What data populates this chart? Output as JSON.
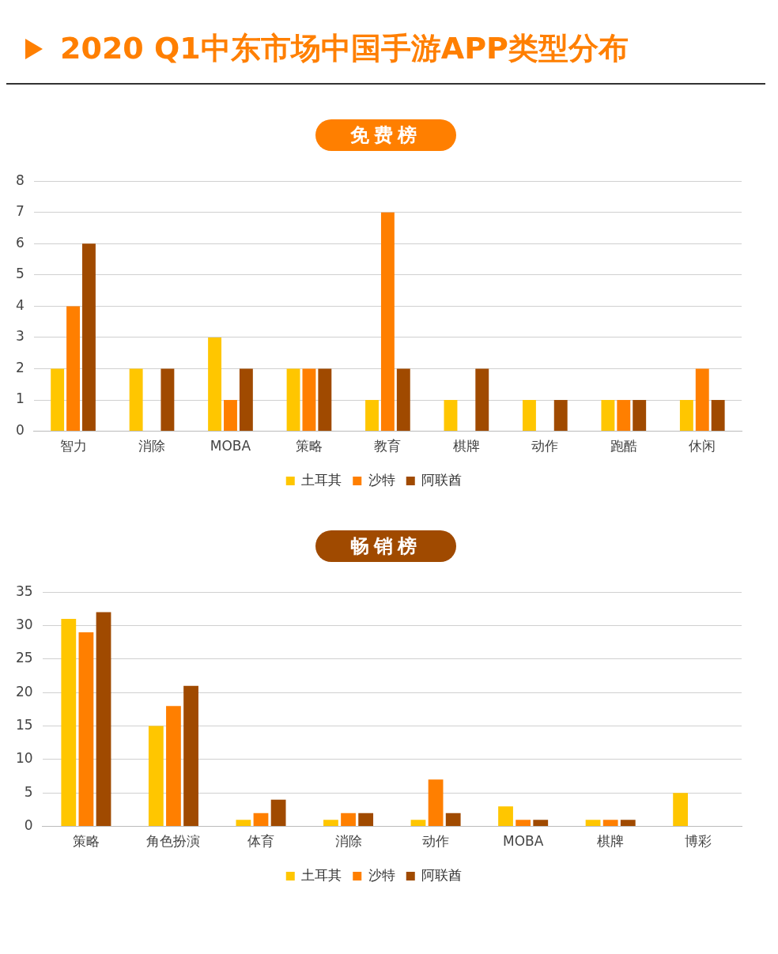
{
  "chart_data": [
    {
      "type": "bar",
      "title": "2020 Q1中东市场中国手游APP类型分布",
      "subtitle": "免费榜",
      "categories": [
        "智力",
        "消除",
        "MOBA",
        "策略",
        "教育",
        "棋牌",
        "动作",
        "跑酷",
        "休闲"
      ],
      "series": [
        {
          "name": "土耳其",
          "color": "#ffc600",
          "values": [
            2,
            2,
            3,
            2,
            1,
            1,
            1,
            1,
            1
          ]
        },
        {
          "name": "沙特",
          "color": "#ff7f00",
          "values": [
            4,
            0,
            1,
            2,
            7,
            0,
            0,
            1,
            2
          ]
        },
        {
          "name": "阿联酋",
          "color": "#a04a00",
          "values": [
            6,
            2,
            2,
            2,
            2,
            2,
            1,
            1,
            1
          ]
        }
      ],
      "ylim": [
        0,
        8
      ],
      "yticks": [
        0,
        1,
        2,
        3,
        4,
        5,
        6,
        7,
        8
      ],
      "grid": "y",
      "legend": "bottom"
    },
    {
      "type": "bar",
      "subtitle": "畅销榜",
      "categories": [
        "策略",
        "角色扮演",
        "体育",
        "消除",
        "动作",
        "MOBA",
        "棋牌",
        "博彩"
      ],
      "series": [
        {
          "name": "土耳其",
          "color": "#ffc600",
          "values": [
            31,
            15,
            1,
            1,
            1,
            3,
            1,
            5
          ]
        },
        {
          "name": "沙特",
          "color": "#ff7f00",
          "values": [
            29,
            18,
            2,
            2,
            7,
            1,
            1,
            0
          ]
        },
        {
          "name": "阿联酋",
          "color": "#a04a00",
          "values": [
            32,
            21,
            4,
            2,
            2,
            1,
            1,
            0
          ]
        }
      ],
      "ylim": [
        0,
        35
      ],
      "yticks": [
        0,
        5,
        10,
        15,
        20,
        25,
        30,
        35
      ],
      "grid": "y",
      "legend": "bottom"
    }
  ]
}
